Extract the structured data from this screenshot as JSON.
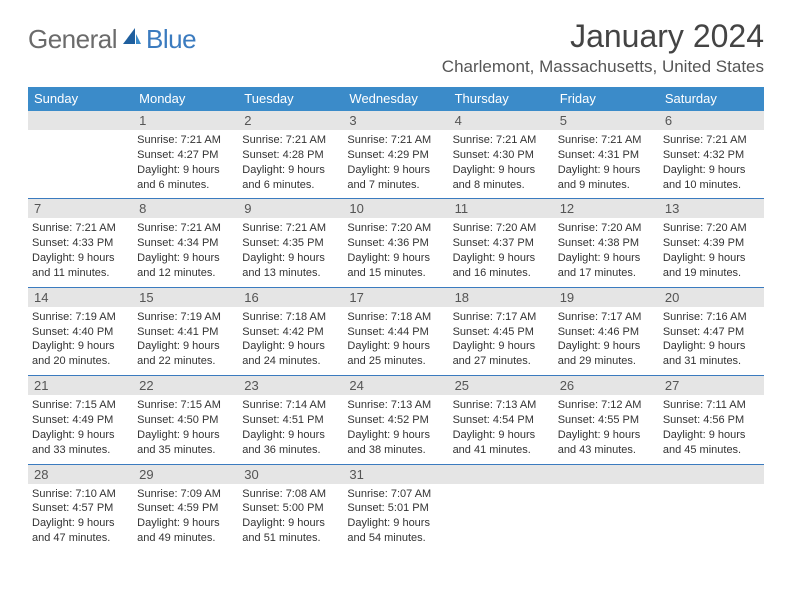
{
  "logo": {
    "general": "General",
    "blue": "Blue"
  },
  "title": "January 2024",
  "location": "Charlemont, Massachusetts, United States",
  "colors": {
    "header_bg": "#3b8bc9",
    "header_text": "#ffffff",
    "daynum_bg": "#e5e5e5",
    "week_border": "#3b7bbf",
    "body_text": "#333333",
    "logo_gray": "#6b6b6b",
    "logo_blue": "#3b7bbf"
  },
  "typography": {
    "title_fontsize": 32,
    "location_fontsize": 17,
    "dayheader_fontsize": 13,
    "daynum_fontsize": 13,
    "cell_fontsize": 11
  },
  "layout": {
    "columns": 7,
    "rows": 5,
    "first_day_column": 1
  },
  "day_names": [
    "Sunday",
    "Monday",
    "Tuesday",
    "Wednesday",
    "Thursday",
    "Friday",
    "Saturday"
  ],
  "weeks": [
    [
      null,
      {
        "n": "1",
        "sr": "Sunrise: 7:21 AM",
        "ss": "Sunset: 4:27 PM",
        "d1": "Daylight: 9 hours",
        "d2": "and 6 minutes."
      },
      {
        "n": "2",
        "sr": "Sunrise: 7:21 AM",
        "ss": "Sunset: 4:28 PM",
        "d1": "Daylight: 9 hours",
        "d2": "and 6 minutes."
      },
      {
        "n": "3",
        "sr": "Sunrise: 7:21 AM",
        "ss": "Sunset: 4:29 PM",
        "d1": "Daylight: 9 hours",
        "d2": "and 7 minutes."
      },
      {
        "n": "4",
        "sr": "Sunrise: 7:21 AM",
        "ss": "Sunset: 4:30 PM",
        "d1": "Daylight: 9 hours",
        "d2": "and 8 minutes."
      },
      {
        "n": "5",
        "sr": "Sunrise: 7:21 AM",
        "ss": "Sunset: 4:31 PM",
        "d1": "Daylight: 9 hours",
        "d2": "and 9 minutes."
      },
      {
        "n": "6",
        "sr": "Sunrise: 7:21 AM",
        "ss": "Sunset: 4:32 PM",
        "d1": "Daylight: 9 hours",
        "d2": "and 10 minutes."
      }
    ],
    [
      {
        "n": "7",
        "sr": "Sunrise: 7:21 AM",
        "ss": "Sunset: 4:33 PM",
        "d1": "Daylight: 9 hours",
        "d2": "and 11 minutes."
      },
      {
        "n": "8",
        "sr": "Sunrise: 7:21 AM",
        "ss": "Sunset: 4:34 PM",
        "d1": "Daylight: 9 hours",
        "d2": "and 12 minutes."
      },
      {
        "n": "9",
        "sr": "Sunrise: 7:21 AM",
        "ss": "Sunset: 4:35 PM",
        "d1": "Daylight: 9 hours",
        "d2": "and 13 minutes."
      },
      {
        "n": "10",
        "sr": "Sunrise: 7:20 AM",
        "ss": "Sunset: 4:36 PM",
        "d1": "Daylight: 9 hours",
        "d2": "and 15 minutes."
      },
      {
        "n": "11",
        "sr": "Sunrise: 7:20 AM",
        "ss": "Sunset: 4:37 PM",
        "d1": "Daylight: 9 hours",
        "d2": "and 16 minutes."
      },
      {
        "n": "12",
        "sr": "Sunrise: 7:20 AM",
        "ss": "Sunset: 4:38 PM",
        "d1": "Daylight: 9 hours",
        "d2": "and 17 minutes."
      },
      {
        "n": "13",
        "sr": "Sunrise: 7:20 AM",
        "ss": "Sunset: 4:39 PM",
        "d1": "Daylight: 9 hours",
        "d2": "and 19 minutes."
      }
    ],
    [
      {
        "n": "14",
        "sr": "Sunrise: 7:19 AM",
        "ss": "Sunset: 4:40 PM",
        "d1": "Daylight: 9 hours",
        "d2": "and 20 minutes."
      },
      {
        "n": "15",
        "sr": "Sunrise: 7:19 AM",
        "ss": "Sunset: 4:41 PM",
        "d1": "Daylight: 9 hours",
        "d2": "and 22 minutes."
      },
      {
        "n": "16",
        "sr": "Sunrise: 7:18 AM",
        "ss": "Sunset: 4:42 PM",
        "d1": "Daylight: 9 hours",
        "d2": "and 24 minutes."
      },
      {
        "n": "17",
        "sr": "Sunrise: 7:18 AM",
        "ss": "Sunset: 4:44 PM",
        "d1": "Daylight: 9 hours",
        "d2": "and 25 minutes."
      },
      {
        "n": "18",
        "sr": "Sunrise: 7:17 AM",
        "ss": "Sunset: 4:45 PM",
        "d1": "Daylight: 9 hours",
        "d2": "and 27 minutes."
      },
      {
        "n": "19",
        "sr": "Sunrise: 7:17 AM",
        "ss": "Sunset: 4:46 PM",
        "d1": "Daylight: 9 hours",
        "d2": "and 29 minutes."
      },
      {
        "n": "20",
        "sr": "Sunrise: 7:16 AM",
        "ss": "Sunset: 4:47 PM",
        "d1": "Daylight: 9 hours",
        "d2": "and 31 minutes."
      }
    ],
    [
      {
        "n": "21",
        "sr": "Sunrise: 7:15 AM",
        "ss": "Sunset: 4:49 PM",
        "d1": "Daylight: 9 hours",
        "d2": "and 33 minutes."
      },
      {
        "n": "22",
        "sr": "Sunrise: 7:15 AM",
        "ss": "Sunset: 4:50 PM",
        "d1": "Daylight: 9 hours",
        "d2": "and 35 minutes."
      },
      {
        "n": "23",
        "sr": "Sunrise: 7:14 AM",
        "ss": "Sunset: 4:51 PM",
        "d1": "Daylight: 9 hours",
        "d2": "and 36 minutes."
      },
      {
        "n": "24",
        "sr": "Sunrise: 7:13 AM",
        "ss": "Sunset: 4:52 PM",
        "d1": "Daylight: 9 hours",
        "d2": "and 38 minutes."
      },
      {
        "n": "25",
        "sr": "Sunrise: 7:13 AM",
        "ss": "Sunset: 4:54 PM",
        "d1": "Daylight: 9 hours",
        "d2": "and 41 minutes."
      },
      {
        "n": "26",
        "sr": "Sunrise: 7:12 AM",
        "ss": "Sunset: 4:55 PM",
        "d1": "Daylight: 9 hours",
        "d2": "and 43 minutes."
      },
      {
        "n": "27",
        "sr": "Sunrise: 7:11 AM",
        "ss": "Sunset: 4:56 PM",
        "d1": "Daylight: 9 hours",
        "d2": "and 45 minutes."
      }
    ],
    [
      {
        "n": "28",
        "sr": "Sunrise: 7:10 AM",
        "ss": "Sunset: 4:57 PM",
        "d1": "Daylight: 9 hours",
        "d2": "and 47 minutes."
      },
      {
        "n": "29",
        "sr": "Sunrise: 7:09 AM",
        "ss": "Sunset: 4:59 PM",
        "d1": "Daylight: 9 hours",
        "d2": "and 49 minutes."
      },
      {
        "n": "30",
        "sr": "Sunrise: 7:08 AM",
        "ss": "Sunset: 5:00 PM",
        "d1": "Daylight: 9 hours",
        "d2": "and 51 minutes."
      },
      {
        "n": "31",
        "sr": "Sunrise: 7:07 AM",
        "ss": "Sunset: 5:01 PM",
        "d1": "Daylight: 9 hours",
        "d2": "and 54 minutes."
      },
      null,
      null,
      null
    ]
  ]
}
